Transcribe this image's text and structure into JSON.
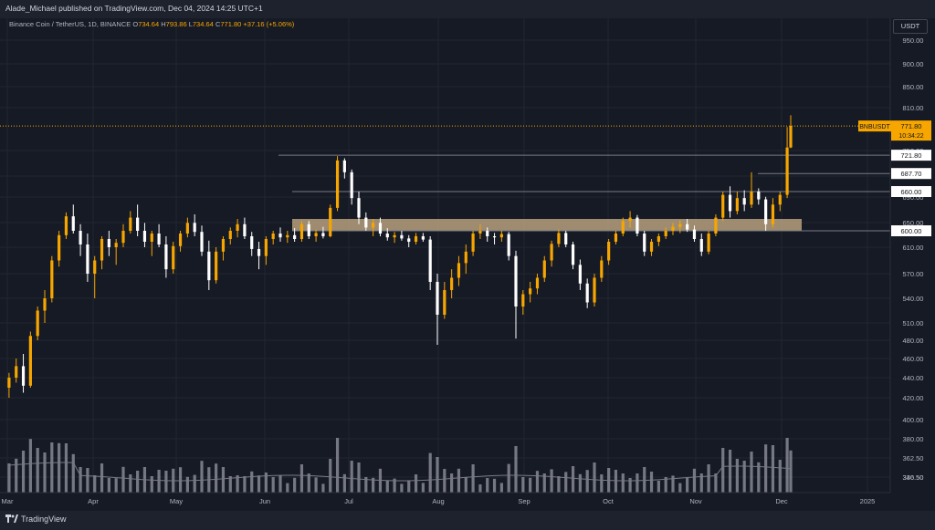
{
  "header": {
    "publisher_line": "Alade_Michael published on TradingView.com, Dec 04, 2024 14:25 UTC+1"
  },
  "legend": {
    "symbol": "Binance Coin / TetherUS, 1D, BINANCE",
    "open_label": "O",
    "open": "734.64",
    "high_label": "H",
    "high": "793.86",
    "low_label": "L",
    "low": "734.64",
    "close_label": "C",
    "close": "771.80",
    "change": "+37.16 (+5.06%)"
  },
  "currency": "USDT",
  "brand": {
    "name": "TradingView"
  },
  "colors": {
    "background": "#161a25",
    "grid": "#222631",
    "up_candle": "#f7a600",
    "down_candle": "#ffffff",
    "volume": "#9598a1",
    "zone": "#c2a983",
    "price_tag": "#f7a600",
    "level_line": "#787b86"
  },
  "chart_data": {
    "type": "candlestick",
    "symbol": "BNBUSDT",
    "price_axis": {
      "ticks": [
        "950.00",
        "900.00",
        "850.00",
        "810.00",
        "750.00",
        "720.00",
        "690.00",
        "650.00",
        "610.00",
        "570.00",
        "540.00",
        "510.00",
        "480.00",
        "460.00",
        "440.00",
        "420.00",
        "400.00",
        "380.00",
        "362.50",
        "346.50",
        "330.50"
      ]
    },
    "time_axis": {
      "ticks": [
        "Mar",
        "Apr",
        "May",
        "Jun",
        "Jul",
        "Aug",
        "Sep",
        "Oct",
        "Nov",
        "Dec",
        "2025"
      ]
    },
    "last_price": {
      "label": "BNBUSDT",
      "value": "771.80",
      "countdown": "10:34:22"
    },
    "horizontal_levels": [
      "721.80",
      "687.70",
      "660.00",
      "600.00"
    ],
    "support_zone": {
      "low": 600,
      "high": 618
    },
    "ohlc_approx": [
      [
        1,
        410,
        425,
        400,
        420
      ],
      [
        3,
        420,
        440,
        415,
        432
      ],
      [
        5,
        432,
        445,
        405,
        412
      ],
      [
        7,
        412,
        470,
        410,
        465
      ],
      [
        9,
        465,
        500,
        460,
        495
      ],
      [
        11,
        495,
        520,
        480,
        510
      ],
      [
        13,
        510,
        560,
        505,
        555
      ],
      [
        15,
        555,
        600,
        548,
        592
      ],
      [
        17,
        592,
        628,
        585,
        622
      ],
      [
        19,
        622,
        640,
        595,
        600
      ],
      [
        21,
        600,
        610,
        560,
        575
      ],
      [
        23,
        575,
        595,
        530,
        540
      ],
      [
        25,
        540,
        560,
        510,
        555
      ],
      [
        27,
        555,
        590,
        545,
        585
      ],
      [
        29,
        585,
        600,
        560,
        570
      ],
      [
        31,
        570,
        585,
        550,
        578
      ],
      [
        33,
        578,
        610,
        570,
        600
      ],
      [
        35,
        600,
        630,
        595,
        620
      ],
      [
        37,
        620,
        640,
        590,
        600
      ],
      [
        39,
        600,
        612,
        570,
        580
      ],
      [
        41,
        580,
        600,
        560,
        595
      ],
      [
        43,
        595,
        610,
        570,
        575
      ],
      [
        45,
        575,
        590,
        535,
        545
      ],
      [
        47,
        545,
        580,
        540,
        572
      ],
      [
        49,
        572,
        600,
        565,
        595
      ],
      [
        51,
        595,
        620,
        588,
        612
      ],
      [
        53,
        612,
        625,
        590,
        598
      ],
      [
        55,
        598,
        608,
        560,
        565
      ],
      [
        57,
        565,
        582,
        520,
        532
      ],
      [
        59,
        532,
        570,
        528,
        565
      ],
      [
        61,
        565,
        590,
        555,
        585
      ],
      [
        63,
        585,
        605,
        575,
        600
      ],
      [
        65,
        600,
        618,
        588,
        610
      ],
      [
        67,
        610,
        620,
        585,
        590
      ],
      [
        69,
        590,
        598,
        560,
        568
      ],
      [
        71,
        568,
        580,
        545,
        560
      ],
      [
        73,
        560,
        590,
        550,
        585
      ],
      [
        75,
        585,
        600,
        575,
        595
      ],
      [
        77,
        595,
        605,
        580,
        588
      ],
      [
        79,
        588,
        600,
        578,
        592
      ],
      [
        81,
        592,
        604,
        580,
        585
      ],
      [
        83,
        585,
        615,
        580,
        610
      ],
      [
        85,
        610,
        615,
        585,
        590
      ],
      [
        87,
        590,
        602,
        580,
        596
      ],
      [
        89,
        596,
        606,
        586,
        590
      ],
      [
        91,
        590,
        640,
        588,
        635
      ],
      [
        93,
        635,
        720,
        630,
        712
      ],
      [
        95,
        712,
        716,
        680,
        690
      ],
      [
        97,
        690,
        695,
        640,
        650
      ],
      [
        99,
        650,
        660,
        610,
        620
      ],
      [
        101,
        620,
        628,
        600,
        605
      ],
      [
        103,
        605,
        618,
        590,
        612
      ],
      [
        105,
        612,
        620,
        590,
        595
      ],
      [
        107,
        595,
        604,
        582,
        588
      ],
      [
        109,
        588,
        598,
        578,
        592
      ],
      [
        111,
        592,
        600,
        582,
        586
      ],
      [
        113,
        586,
        592,
        570,
        580
      ],
      [
        115,
        580,
        596,
        575,
        590
      ],
      [
        117,
        590,
        596,
        580,
        584
      ],
      [
        119,
        584,
        590,
        520,
        530
      ],
      [
        121,
        530,
        540,
        455,
        490
      ],
      [
        123,
        490,
        530,
        485,
        520
      ],
      [
        125,
        520,
        545,
        510,
        535
      ],
      [
        127,
        535,
        560,
        525,
        552
      ],
      [
        129,
        552,
        575,
        540,
        565
      ],
      [
        131,
        565,
        600,
        560,
        595
      ],
      [
        133,
        595,
        610,
        585,
        600
      ],
      [
        135,
        600,
        605,
        580,
        590
      ],
      [
        137,
        590,
        596,
        575,
        588
      ],
      [
        139,
        588,
        600,
        580,
        594
      ],
      [
        141,
        594,
        598,
        555,
        560
      ],
      [
        143,
        560,
        566,
        462,
        500
      ],
      [
        145,
        500,
        520,
        490,
        515
      ],
      [
        147,
        515,
        530,
        505,
        522
      ],
      [
        149,
        522,
        540,
        515,
        535
      ],
      [
        151,
        535,
        560,
        530,
        555
      ],
      [
        153,
        555,
        582,
        548,
        576
      ],
      [
        155,
        576,
        602,
        570,
        596
      ],
      [
        157,
        596,
        600,
        570,
        575
      ],
      [
        159,
        575,
        580,
        545,
        550
      ],
      [
        161,
        550,
        556,
        520,
        528
      ],
      [
        163,
        528,
        534,
        498,
        505
      ],
      [
        165,
        505,
        540,
        500,
        535
      ],
      [
        167,
        535,
        560,
        530,
        555
      ],
      [
        169,
        555,
        585,
        550,
        580
      ],
      [
        171,
        580,
        600,
        575,
        595
      ],
      [
        173,
        595,
        620,
        590,
        615
      ],
      [
        175,
        615,
        630,
        605,
        620
      ],
      [
        177,
        620,
        624,
        590,
        595
      ],
      [
        179,
        595,
        600,
        560,
        565
      ],
      [
        181,
        565,
        585,
        560,
        580
      ],
      [
        183,
        580,
        595,
        572,
        590
      ],
      [
        185,
        590,
        605,
        585,
        600
      ],
      [
        187,
        600,
        612,
        592,
        606
      ],
      [
        189,
        606,
        616,
        596,
        610
      ],
      [
        191,
        610,
        618,
        598,
        602
      ],
      [
        193,
        602,
        608,
        580,
        585
      ],
      [
        195,
        585,
        595,
        560,
        565
      ],
      [
        197,
        565,
        600,
        562,
        595
      ],
      [
        199,
        595,
        625,
        590,
        620
      ],
      [
        201,
        620,
        660,
        615,
        655
      ],
      [
        203,
        655,
        668,
        620,
        630
      ],
      [
        205,
        630,
        660,
        625,
        650
      ],
      [
        207,
        650,
        662,
        630,
        640
      ],
      [
        209,
        640,
        690,
        635,
        660
      ],
      [
        211,
        660,
        665,
        640,
        648
      ],
      [
        213,
        648,
        652,
        600,
        610
      ],
      [
        215,
        610,
        650,
        605,
        640
      ],
      [
        217,
        640,
        660,
        630,
        655
      ],
      [
        219,
        655,
        770,
        650,
        735
      ],
      [
        220,
        735,
        794,
        734,
        772
      ]
    ],
    "volume_note": "relative heights only"
  }
}
